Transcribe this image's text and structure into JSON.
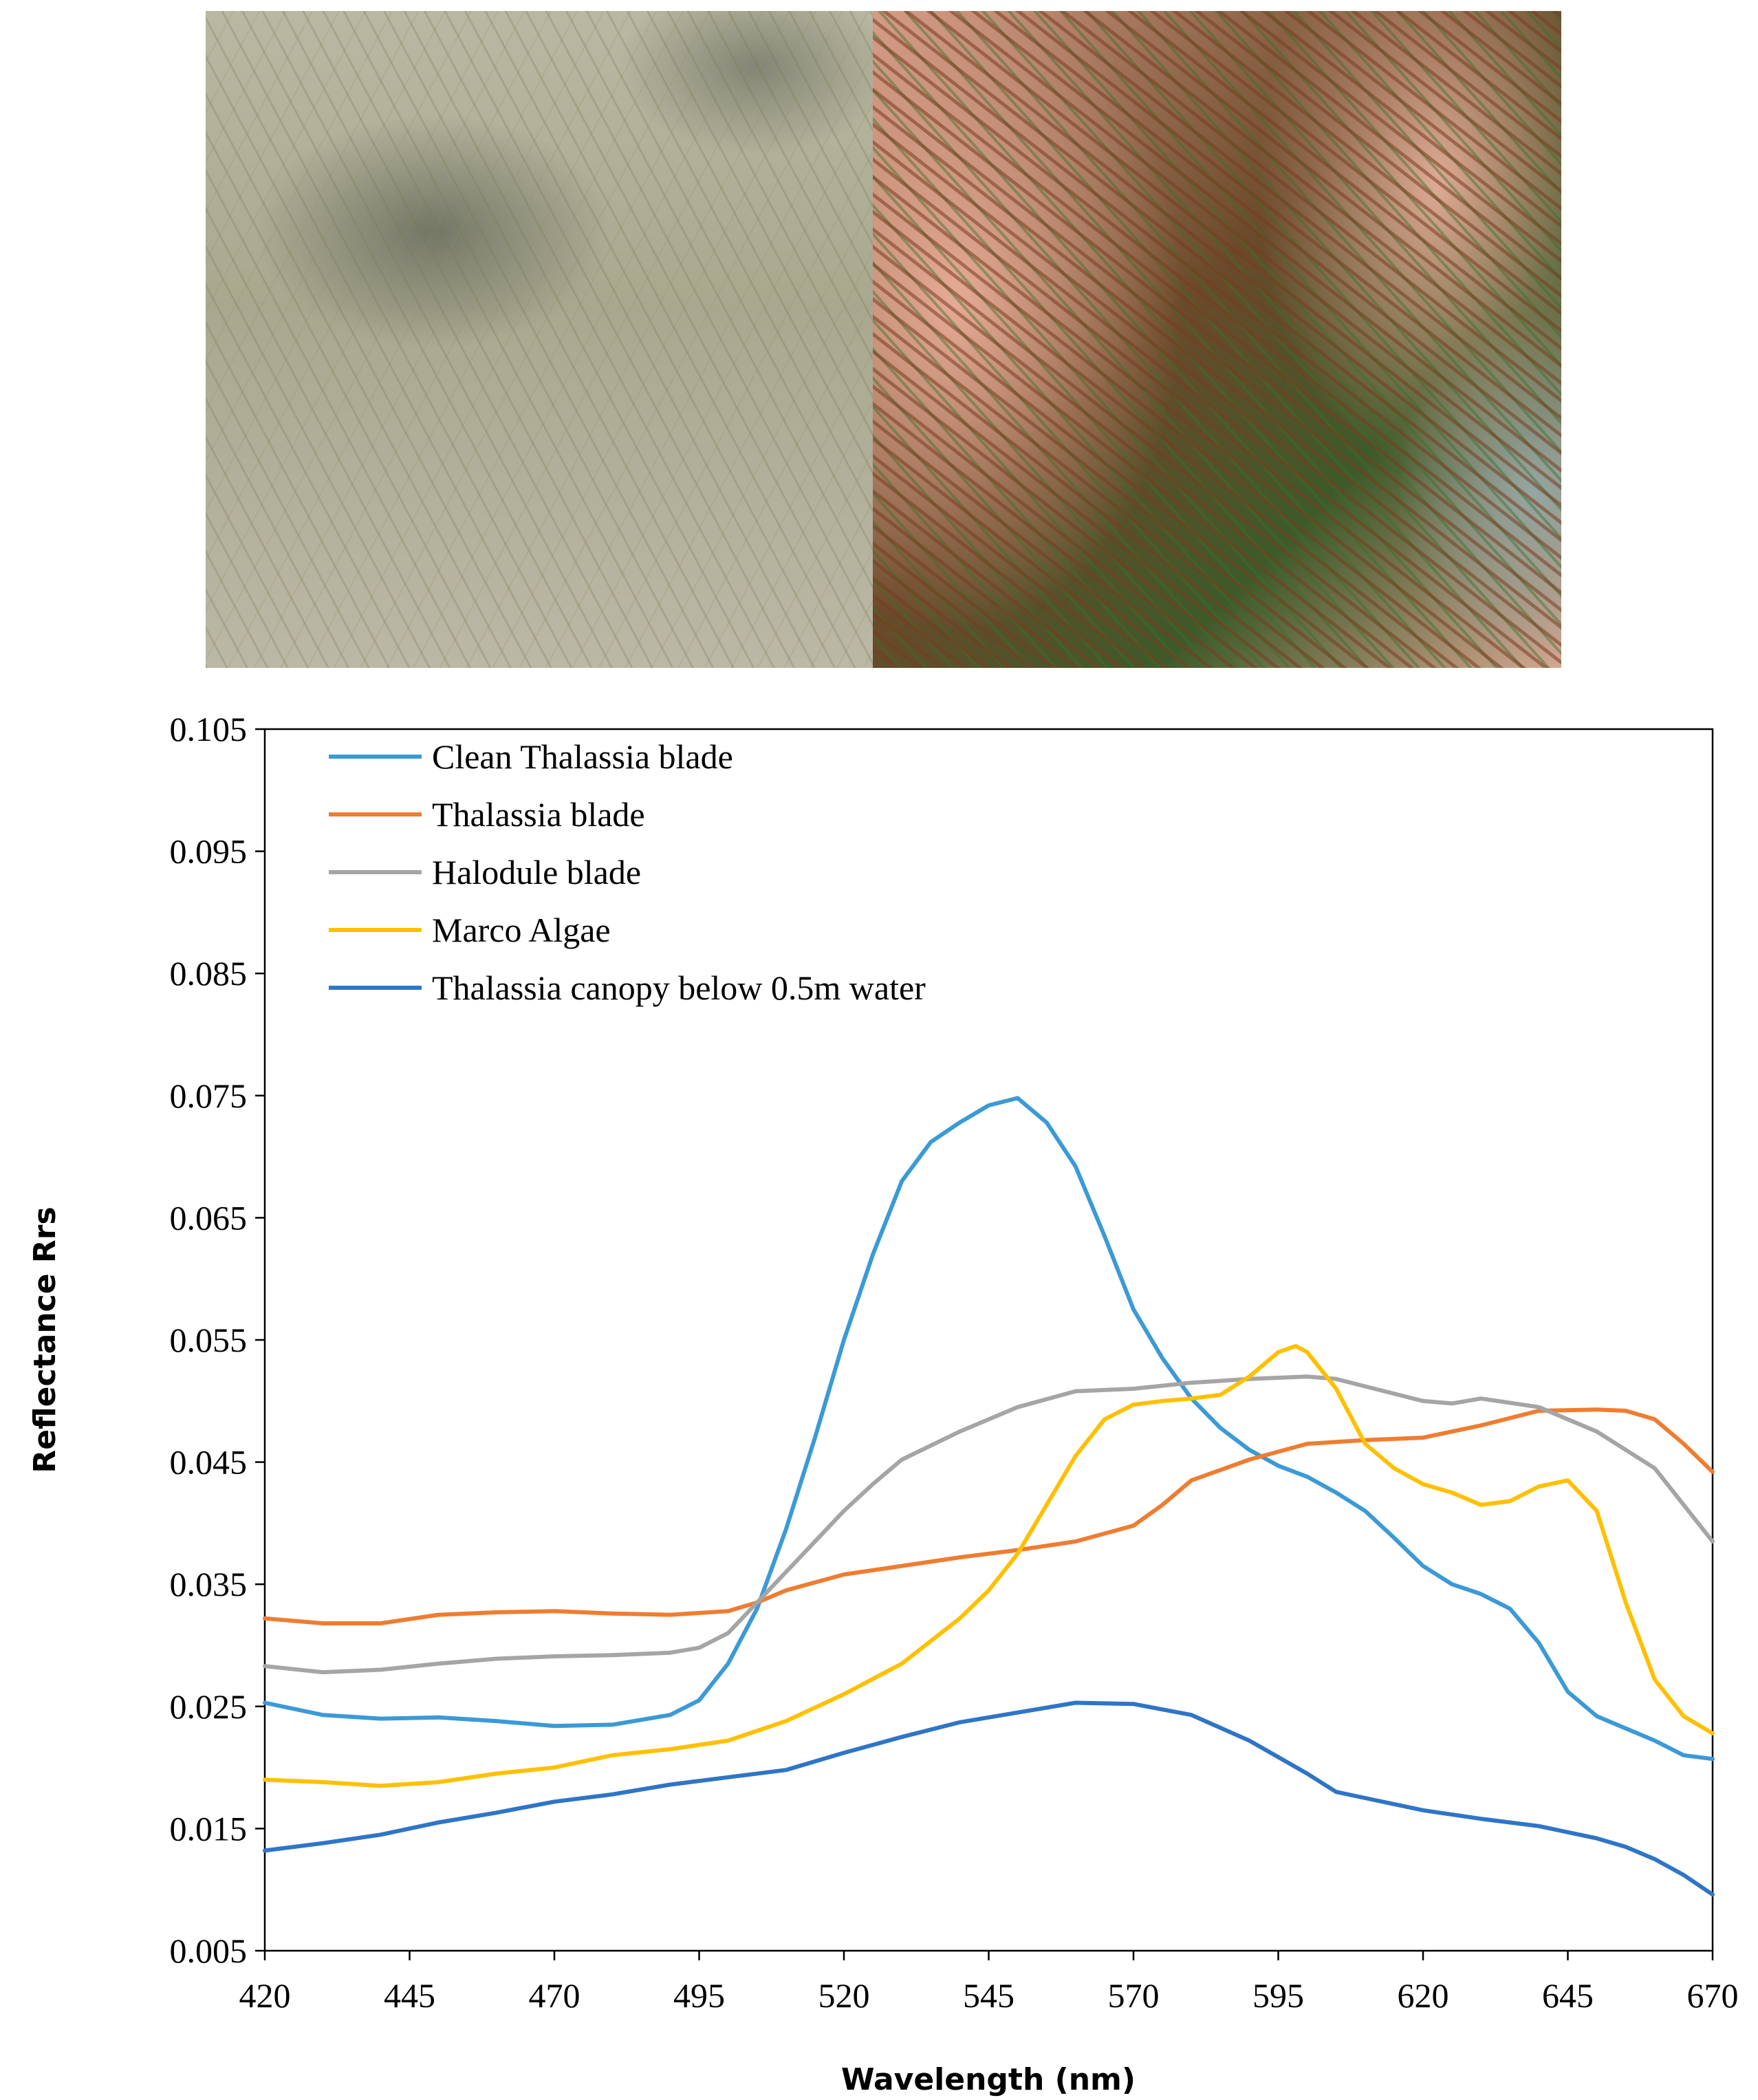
{
  "photos": [
    {
      "name": "seagrass-underwater-photo"
    },
    {
      "name": "seagrass-blades-in-hand-photo"
    }
  ],
  "chart_data": {
    "type": "line",
    "title": "",
    "xlabel": "Wavelength (nm)",
    "ylabel": "Reflectance Rrs",
    "xlim": [
      420,
      670
    ],
    "ylim": [
      0.005,
      0.105
    ],
    "xticks": [
      "420",
      "445",
      "470",
      "495",
      "520",
      "545",
      "570",
      "595",
      "620",
      "645",
      "670"
    ],
    "yticks": [
      "0.105",
      "0.095",
      "0.085",
      "0.075",
      "0.065",
      "0.055",
      "0.045",
      "0.035",
      "0.025",
      "0.015",
      "0.005"
    ],
    "grid": false,
    "legend": "top-left",
    "series": [
      {
        "name": "Clean Thalassia blade",
        "color": "#3b9ad6",
        "x": [
          420,
          430,
          440,
          450,
          460,
          470,
          480,
          490,
          495,
          500,
          505,
          510,
          515,
          520,
          525,
          530,
          535,
          540,
          545,
          550,
          555,
          560,
          565,
          570,
          575,
          580,
          585,
          590,
          595,
          600,
          605,
          610,
          615,
          620,
          625,
          630,
          635,
          640,
          645,
          650,
          655,
          660,
          665,
          670
        ],
        "y": [
          0.0253,
          0.0243,
          0.024,
          0.0241,
          0.0238,
          0.0234,
          0.0235,
          0.0243,
          0.0255,
          0.0285,
          0.033,
          0.0395,
          0.047,
          0.055,
          0.062,
          0.068,
          0.0712,
          0.0728,
          0.0742,
          0.0748,
          0.0728,
          0.0692,
          0.0635,
          0.0575,
          0.0535,
          0.0502,
          0.0478,
          0.046,
          0.0447,
          0.0438,
          0.0425,
          0.041,
          0.0388,
          0.0365,
          0.035,
          0.0342,
          0.033,
          0.0302,
          0.0262,
          0.0242,
          0.0232,
          0.0222,
          0.021,
          0.0207
        ]
      },
      {
        "name": "Thalassia blade",
        "color": "#ee7d31",
        "x": [
          420,
          430,
          440,
          450,
          460,
          470,
          480,
          490,
          500,
          505,
          510,
          520,
          530,
          540,
          550,
          560,
          570,
          575,
          580,
          590,
          600,
          610,
          620,
          630,
          640,
          650,
          655,
          660,
          665,
          670
        ],
        "y": [
          0.0322,
          0.0318,
          0.0318,
          0.0325,
          0.0327,
          0.0328,
          0.0326,
          0.0325,
          0.0328,
          0.0335,
          0.0345,
          0.0358,
          0.0365,
          0.0372,
          0.0378,
          0.0385,
          0.0398,
          0.0415,
          0.0435,
          0.0452,
          0.0465,
          0.0468,
          0.047,
          0.048,
          0.0492,
          0.0493,
          0.0492,
          0.0485,
          0.0465,
          0.0442
        ]
      },
      {
        "name": "Halodule blade",
        "color": "#a5a5a5",
        "x": [
          420,
          430,
          440,
          450,
          460,
          470,
          480,
          490,
          495,
          500,
          505,
          510,
          515,
          520,
          525,
          530,
          540,
          550,
          560,
          570,
          580,
          590,
          600,
          605,
          610,
          620,
          625,
          630,
          640,
          650,
          660,
          670
        ],
        "y": [
          0.0283,
          0.0278,
          0.028,
          0.0285,
          0.0289,
          0.0291,
          0.0292,
          0.0294,
          0.0298,
          0.031,
          0.0335,
          0.036,
          0.0385,
          0.041,
          0.0432,
          0.0452,
          0.0475,
          0.0495,
          0.0508,
          0.051,
          0.0515,
          0.0518,
          0.052,
          0.0518,
          0.0512,
          0.05,
          0.0498,
          0.0502,
          0.0495,
          0.0475,
          0.0445,
          0.0385
        ]
      },
      {
        "name": "Marco Algae",
        "color": "#ffc000",
        "x": [
          420,
          430,
          440,
          450,
          460,
          470,
          480,
          490,
          500,
          510,
          520,
          530,
          540,
          545,
          550,
          555,
          560,
          565,
          570,
          575,
          580,
          585,
          590,
          595,
          598,
          600,
          605,
          610,
          615,
          620,
          625,
          630,
          635,
          640,
          645,
          650,
          655,
          660,
          665,
          670
        ],
        "y": [
          0.019,
          0.0188,
          0.0185,
          0.0188,
          0.0195,
          0.02,
          0.021,
          0.0215,
          0.0222,
          0.0238,
          0.026,
          0.0285,
          0.0322,
          0.0345,
          0.0375,
          0.0415,
          0.0455,
          0.0485,
          0.0497,
          0.05,
          0.0502,
          0.0505,
          0.052,
          0.054,
          0.0545,
          0.054,
          0.051,
          0.0465,
          0.0445,
          0.0432,
          0.0425,
          0.0415,
          0.0418,
          0.043,
          0.0435,
          0.041,
          0.0335,
          0.0272,
          0.0242,
          0.0228
        ]
      },
      {
        "name": "Thalassia canopy below 0.5m water",
        "color": "#2f75c6",
        "x": [
          420,
          430,
          440,
          450,
          460,
          470,
          480,
          490,
          500,
          510,
          520,
          530,
          540,
          550,
          560,
          570,
          580,
          590,
          600,
          605,
          610,
          620,
          630,
          640,
          650,
          655,
          660,
          665,
          670
        ],
        "y": [
          0.0132,
          0.0138,
          0.0145,
          0.0155,
          0.0163,
          0.0172,
          0.0178,
          0.0186,
          0.0192,
          0.0198,
          0.0212,
          0.0225,
          0.0237,
          0.0245,
          0.0253,
          0.0252,
          0.0243,
          0.0222,
          0.0195,
          0.018,
          0.0175,
          0.0165,
          0.0158,
          0.0152,
          0.0142,
          0.0135,
          0.0125,
          0.0112,
          0.0096
        ]
      }
    ]
  }
}
